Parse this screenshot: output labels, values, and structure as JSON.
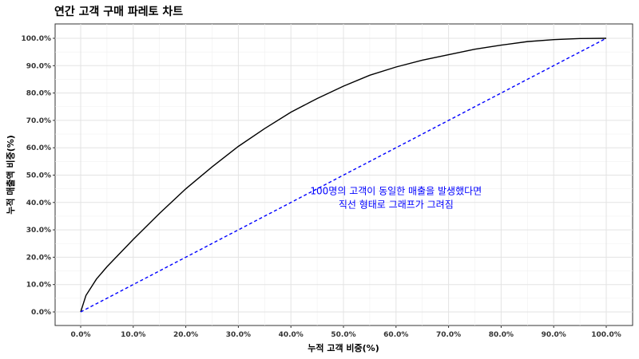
{
  "chart_data": {
    "type": "line",
    "title": "연간 고객 구매 파레토 차트",
    "xlabel": "누적 고객 비중(%)",
    "ylabel": "누적 매출액 비중(%)",
    "xlim": [
      0,
      1
    ],
    "ylim": [
      0,
      1
    ],
    "x_ticks": [
      0,
      0.1,
      0.2,
      0.3,
      0.4,
      0.5,
      0.6,
      0.7,
      0.8,
      0.9,
      1.0
    ],
    "x_tick_labels": [
      "0.0%",
      "10.0%",
      "20.0%",
      "30.0%",
      "40.0%",
      "50.0%",
      "60.0%",
      "70.0%",
      "80.0%",
      "90.0%",
      "100.0%"
    ],
    "y_ticks": [
      0,
      0.1,
      0.2,
      0.3,
      0.4,
      0.5,
      0.6,
      0.7,
      0.8,
      0.9,
      1.0
    ],
    "y_tick_labels": [
      "0.0%",
      "10.0%",
      "20.0%",
      "30.0%",
      "40.0%",
      "50.0%",
      "60.0%",
      "70.0%",
      "80.0%",
      "90.0%",
      "100.0%"
    ],
    "grid": true,
    "series": [
      {
        "style": "solid",
        "color": "#000000",
        "x": [
          0,
          0.01,
          0.02,
          0.03,
          0.05,
          0.1,
          0.15,
          0.2,
          0.25,
          0.3,
          0.35,
          0.4,
          0.45,
          0.5,
          0.55,
          0.6,
          0.65,
          0.7,
          0.75,
          0.8,
          0.85,
          0.9,
          0.95,
          1.0
        ],
        "y": [
          0,
          0.06,
          0.09,
          0.12,
          0.165,
          0.265,
          0.36,
          0.45,
          0.53,
          0.605,
          0.67,
          0.73,
          0.78,
          0.825,
          0.865,
          0.895,
          0.92,
          0.94,
          0.96,
          0.975,
          0.988,
          0.995,
          0.999,
          1.0
        ]
      },
      {
        "style": "dashed",
        "color": "#0000ff",
        "x": [
          0,
          1
        ],
        "y": [
          0,
          1
        ]
      }
    ],
    "annotations": [
      {
        "text": "100명의 고객이 동일한 매출을 발생했다면",
        "x": 0.6,
        "y": 0.43,
        "color": "#0000ff"
      },
      {
        "text": "직선 형태로 그래프가 그려짐",
        "x": 0.6,
        "y": 0.38,
        "color": "#0000ff"
      }
    ]
  }
}
